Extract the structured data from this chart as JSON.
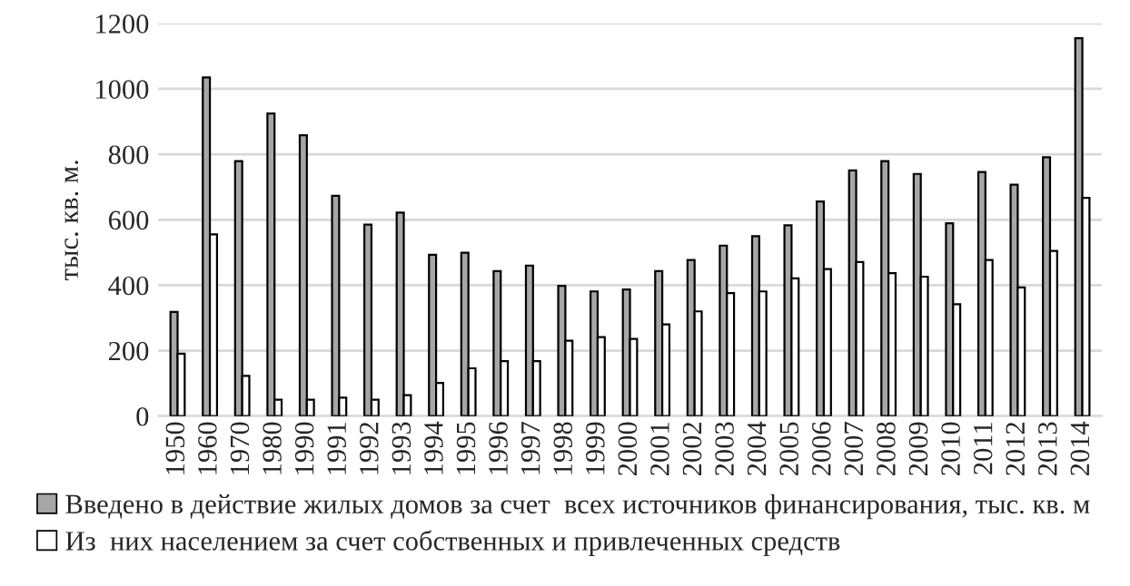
{
  "chart_data": {
    "type": "bar",
    "ylabel": "тыс. кв. м.",
    "categories": [
      "1950",
      "1960",
      "1970",
      "1980",
      "1990",
      "1991",
      "1992",
      "1993",
      "1994",
      "1995",
      "1996",
      "1997",
      "1998",
      "1999",
      "2000",
      "2001",
      "2002",
      "2003",
      "2004",
      "2005",
      "2006",
      "2007",
      "2008",
      "2009",
      "2010",
      "2011",
      "2012",
      "2013",
      "2014"
    ],
    "series": [
      {
        "name": "Введено в действие жилых домов за счет  всех источников финансирования, тыс. кв. м",
        "color": "#a6a6a6",
        "values": [
          318,
          1035,
          779,
          925,
          858,
          673,
          585,
          622,
          493,
          499,
          443,
          460,
          398,
          381,
          387,
          443,
          477,
          521,
          550,
          583,
          656,
          751,
          779,
          740,
          589,
          746,
          707,
          791,
          1155
        ]
      },
      {
        "name": "Из  них населением за счет собственных и привлеченных средств",
        "color": "#ffffff",
        "values": [
          191,
          555,
          123,
          50,
          50,
          56,
          50,
          64,
          101,
          146,
          168,
          168,
          230,
          241,
          236,
          280,
          320,
          376,
          381,
          421,
          449,
          471,
          437,
          426,
          342,
          477,
          393,
          505,
          667
        ]
      }
    ],
    "ylim": [
      0,
      1200
    ],
    "yticks": [
      0,
      200,
      400,
      600,
      800,
      1000,
      1200
    ],
    "grid": "y",
    "legend": "bottom"
  }
}
